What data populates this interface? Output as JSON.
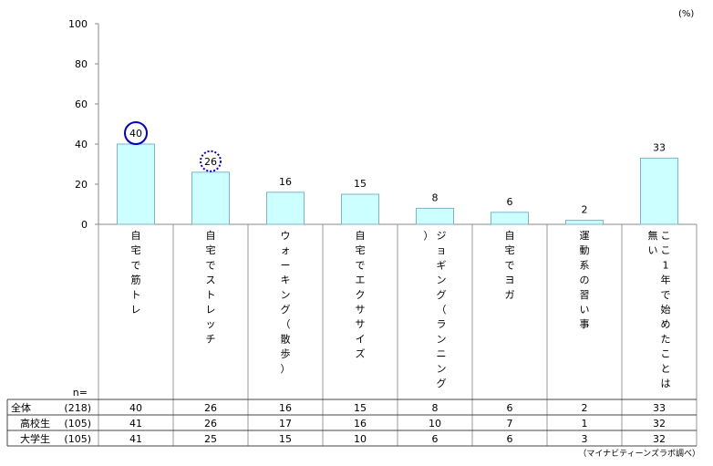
{
  "chart_data": {
    "type": "bar",
    "unit": "(%)",
    "ylim": [
      0,
      100
    ],
    "yticks": [
      "0",
      "20",
      "40",
      "60",
      "80",
      "100"
    ],
    "grid": false,
    "categories": [
      "自宅で筋トレ",
      "自宅でストレッチ",
      "ウォーキング（散歩）",
      "自宅でエクササイズ",
      "ジョギング（ランニング）",
      "自宅でヨガ",
      "運動系の習い事",
      "ここ1年で始めたことは無い"
    ],
    "values": [
      40,
      26,
      16,
      15,
      8,
      6,
      2,
      33
    ],
    "bar_color": "#ccffff",
    "bar_edge_color": "#7fb3c8",
    "highlights": [
      {
        "index": 0,
        "style": "solid-circle",
        "color": "#0000cc"
      },
      {
        "index": 1,
        "style": "dotted-circle",
        "color": "#0000cc"
      }
    ]
  },
  "table": {
    "n_label": "n=",
    "rows": [
      {
        "label": "全体",
        "n": "(218)",
        "values": [
          "40",
          "26",
          "16",
          "15",
          "8",
          "6",
          "2",
          "33"
        ]
      },
      {
        "label": "高校生",
        "n": "(105)",
        "values": [
          "41",
          "26",
          "17",
          "16",
          "10",
          "7",
          "1",
          "32"
        ]
      },
      {
        "label": "大学生",
        "n": "(105)",
        "values": [
          "41",
          "25",
          "15",
          "10",
          "6",
          "6",
          "3",
          "32"
        ]
      }
    ]
  },
  "source": "（マイナビティーンズラボ調べ）"
}
